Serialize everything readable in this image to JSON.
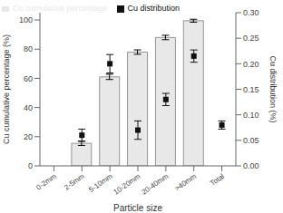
{
  "chart_data": {
    "type": "bar",
    "x_label": "Particle size",
    "y_label": "Cu cumulative percentage (%)",
    "y2_label": "Cu distribution (%)",
    "categories": [
      "0-2mm",
      "2-5mm",
      "5-10mm",
      "10-20mm",
      "20-40mm",
      ">40mm",
      "Total"
    ],
    "ylim": [
      0,
      105
    ],
    "yticks": [
      0,
      20,
      40,
      60,
      80,
      100
    ],
    "y2lim": [
      0.0,
      0.3
    ],
    "y2ticks": [
      {
        "value": 0.0,
        "label": "0.00"
      },
      0.05,
      {
        "value": 0.1,
        "label": "0.10"
      },
      0.15,
      {
        "value": 0.2,
        "label": "0.20"
      },
      0.25,
      {
        "value": 0.3,
        "label": "0.30"
      }
    ],
    "legend": "upper left",
    "grid": false,
    "series": [
      {
        "name": "Cu cumulative percentage",
        "type": "bar",
        "color": "#e8e8e8",
        "values": [
          null,
          15.5,
          61.0,
          78.0,
          88.0,
          99.5,
          null
        ],
        "errors": [
          null,
          1.5,
          1.8,
          1.5,
          1.5,
          1.0,
          null
        ]
      },
      {
        "name": "Cu distribution",
        "type": "scatter",
        "axis": "y2",
        "color": "#111111",
        "marker": "square",
        "values": [
          null,
          0.06,
          0.2,
          0.07,
          0.13,
          0.215,
          0.08
        ],
        "errors": [
          null,
          0.012,
          0.018,
          0.018,
          0.012,
          0.012,
          0.008
        ]
      }
    ]
  }
}
